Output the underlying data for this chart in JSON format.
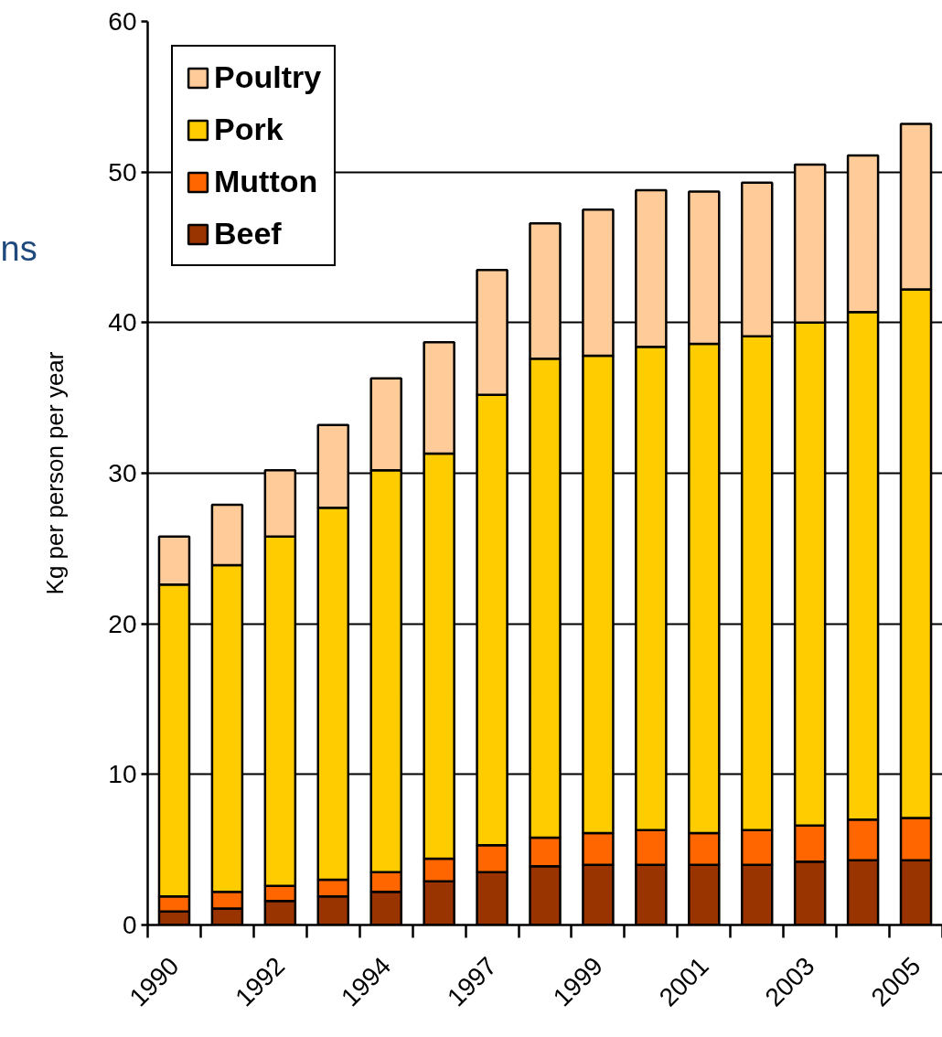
{
  "chart_data": {
    "type": "bar",
    "stacked": true,
    "ylabel": "Kg per person per year",
    "annotations": [
      "ns"
    ],
    "categories": [
      "1990",
      null,
      "1992",
      null,
      "1994",
      null,
      "1997",
      null,
      "1999",
      null,
      "2001",
      null,
      "2003",
      null,
      "2005"
    ],
    "series": [
      {
        "name": "Beef",
        "color": "#993300",
        "values": [
          0.9,
          1.1,
          1.6,
          1.9,
          2.2,
          2.9,
          3.5,
          3.9,
          4.0,
          4.0,
          4.0,
          4.0,
          4.2,
          4.3,
          4.3
        ]
      },
      {
        "name": "Mutton",
        "color": "#ff6600",
        "values": [
          1.0,
          1.1,
          1.0,
          1.1,
          1.3,
          1.5,
          1.8,
          1.9,
          2.1,
          2.3,
          2.1,
          2.3,
          2.4,
          2.7,
          2.8
        ]
      },
      {
        "name": "Pork",
        "color": "#ffcc00",
        "values": [
          20.7,
          21.7,
          23.2,
          24.7,
          26.7,
          26.9,
          29.9,
          31.8,
          31.7,
          32.1,
          32.5,
          32.8,
          33.4,
          33.7,
          35.1
        ]
      },
      {
        "name": "Poultry",
        "color": "#ffcc99",
        "values": [
          3.2,
          4.0,
          4.4,
          5.5,
          6.1,
          7.4,
          8.3,
          9.0,
          9.7,
          10.4,
          10.1,
          10.2,
          10.5,
          10.4,
          11.0
        ]
      }
    ],
    "ylim": [
      0,
      60
    ],
    "yticks": [
      0,
      10,
      20,
      30,
      40,
      50,
      60
    ],
    "grid": "y",
    "legend": "top left"
  }
}
